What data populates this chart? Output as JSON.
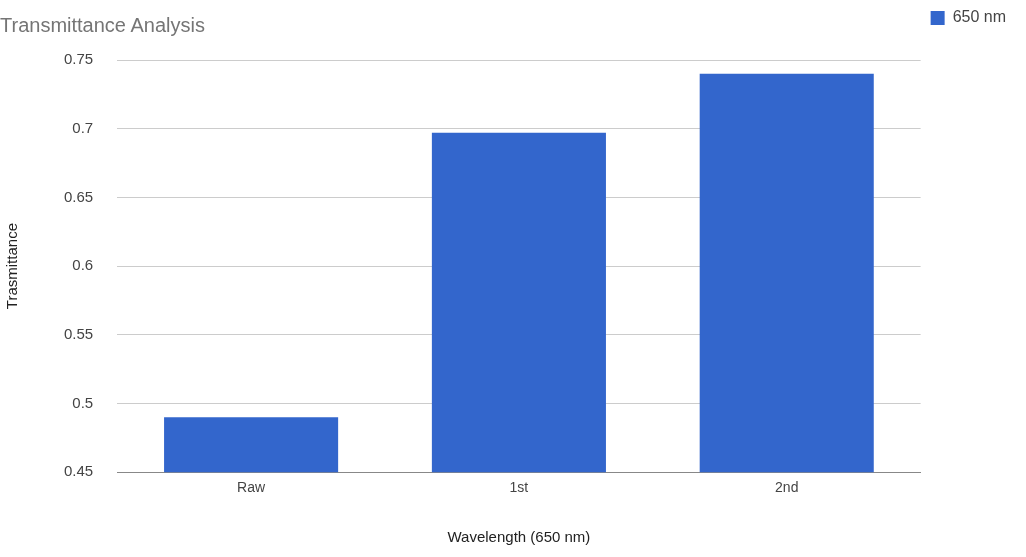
{
  "chart_data": {
    "type": "bar",
    "title": "Transmittance Analysis",
    "xlabel": "Wavelength (650 nm)",
    "ylabel": "Trasmittance",
    "categories": [
      "Raw",
      "1st",
      "2nd"
    ],
    "series": [
      {
        "name": "650 nm",
        "color": "#3366cc",
        "values": [
          0.49,
          0.697,
          0.74
        ]
      }
    ],
    "ylim": [
      0.45,
      0.75
    ],
    "yticks": [
      0.45,
      0.5,
      0.55,
      0.6,
      0.65,
      0.7,
      0.75
    ],
    "grid": "y",
    "legend": "top right"
  }
}
